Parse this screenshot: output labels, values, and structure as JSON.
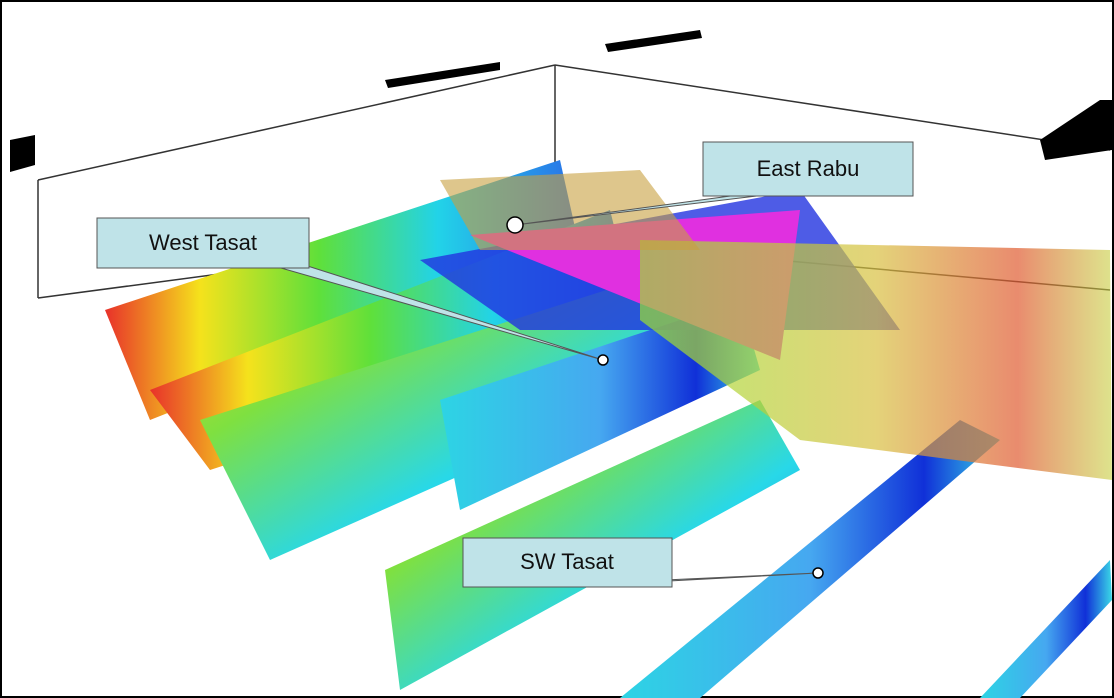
{
  "callouts": [
    {
      "label": "East Rabu"
    },
    {
      "label": "West Tasat"
    },
    {
      "label": "SW Tasat"
    }
  ]
}
